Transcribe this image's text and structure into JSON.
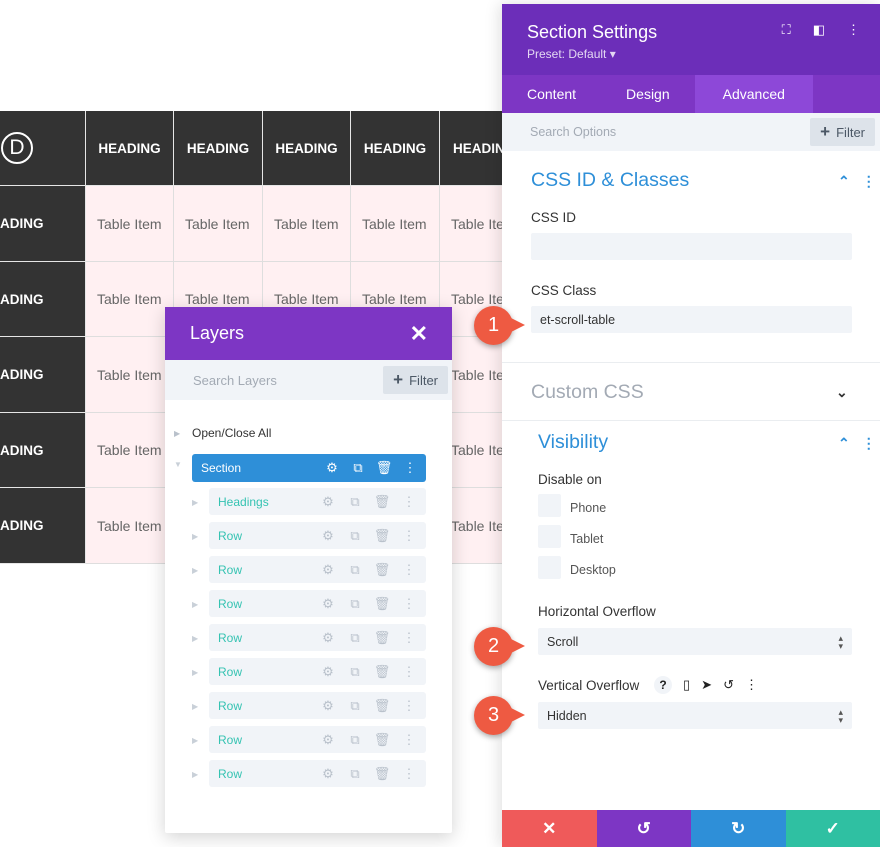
{
  "table": {
    "logo_letter": "D",
    "column_headings": [
      "HEADING",
      "HEADING",
      "HEADING",
      "HEADING",
      "HEADIN"
    ],
    "row_headings": [
      "ADING",
      "ADING",
      "ADING",
      "ADING",
      "ADING"
    ],
    "rows": [
      [
        "Table Item",
        "Table Item",
        "Table Item",
        "Table Item",
        "Table Ite"
      ],
      [
        "Table Item",
        "Table Item",
        "Table Item",
        "Table Item",
        "Table Ite"
      ],
      [
        "Table Item",
        "",
        "",
        "",
        "Table Ite"
      ],
      [
        "Table Item",
        "",
        "",
        "",
        "Table Ite"
      ],
      [
        "Table Item",
        "",
        "",
        "",
        "Table Ite"
      ]
    ],
    "visible_under_layers": [
      "Table Item",
      "Table Item",
      "Table Item"
    ]
  },
  "layers": {
    "title": "Layers",
    "close_icon": "close-icon",
    "search_placeholder": "Search Layers",
    "filter_label": "Filter",
    "open_close_all": "Open/Close All",
    "section_label": "Section",
    "items": [
      "Headings",
      "Row",
      "Row",
      "Row",
      "Row",
      "Row",
      "Row",
      "Row",
      "Row"
    ]
  },
  "settings": {
    "title": "Section Settings",
    "preset": "Preset: Default",
    "tabs": [
      "Content",
      "Design",
      "Advanced"
    ],
    "active_tab": "Advanced",
    "search_placeholder": "Search Options",
    "filter_label": "Filter",
    "css_group_title": "CSS ID & Classes",
    "css_id_label": "CSS ID",
    "css_id_value": "",
    "css_class_label": "CSS Class",
    "css_class_value": "et-scroll-table",
    "custom_css_title": "Custom CSS",
    "visibility_title": "Visibility",
    "disable_on_label": "Disable on",
    "devices": [
      "Phone",
      "Tablet",
      "Desktop"
    ],
    "horizontal_overflow_label": "Horizontal Overflow",
    "horizontal_overflow_value": "Scroll",
    "vertical_overflow_label": "Vertical Overflow",
    "vertical_overflow_value": "Hidden",
    "help_glyph": "?",
    "footer_colors": [
      "#ef5a5a",
      "#7d36c4",
      "#2e8fd8",
      "#2fc0a2"
    ]
  },
  "callouts": [
    "1",
    "2",
    "3"
  ],
  "colors": {
    "accent_purple": "#7d36c4",
    "accent_blue": "#2e8fd8",
    "accent_teal": "#35c3b2",
    "callout_red": "#ee5a42"
  }
}
